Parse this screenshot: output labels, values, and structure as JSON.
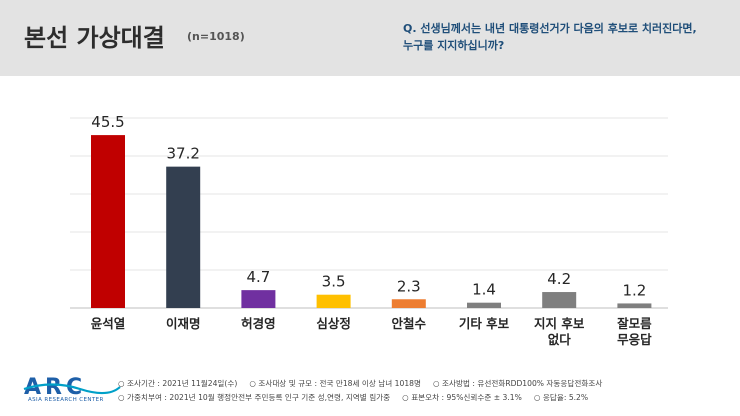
{
  "header": {
    "title": "본선 가상대결",
    "subtitle": "(n=1018)",
    "question_line1": "Q. 선생님께서는 내년 대통령선거가 다음의 후보로 치러진다면,",
    "question_line2": "누구를 지지하십니까?"
  },
  "chart_data": {
    "type": "bar",
    "categories": [
      "윤석열",
      "이재명",
      "허경영",
      "심상정",
      "안철수",
      "기타 후보",
      "지지 후보\n없다",
      "잘모름\n무응답"
    ],
    "values": [
      45.5,
      37.2,
      4.7,
      3.5,
      2.3,
      1.4,
      4.2,
      1.2
    ],
    "value_labels": [
      "45.5",
      "37.2",
      "4.7",
      "3.5",
      "2.3",
      "1.4",
      "4.2",
      "1.2"
    ],
    "colors": [
      "#c00000",
      "#333f50",
      "#7030a0",
      "#ffc000",
      "#ed7d31",
      "#7f7f7f",
      "#7f7f7f",
      "#7f7f7f"
    ],
    "ylim": [
      0,
      50
    ],
    "grid": true,
    "legend": "none"
  },
  "footer": {
    "logo_text": "ARC",
    "logo_subtext": "ASIA RESEARCH CENTER",
    "notes_row1": [
      "○ 조사기간 : 2021년 11월24일(수)",
      "○ 조사대상 및 규모 : 전국 만18세 이상 남녀 1018명",
      "○ 조사방법 : 유선전화RDD100% 자동응답전화조사"
    ],
    "notes_row2": [
      "○ 가중치부여 : 2021년 10월 행정안전부 주민등록 인구 기준 성,연령, 지역별 림가중",
      "○ 표본오차 : 95%신뢰수준 ± 3.1%",
      "○ 응답율: 5.2%"
    ]
  }
}
